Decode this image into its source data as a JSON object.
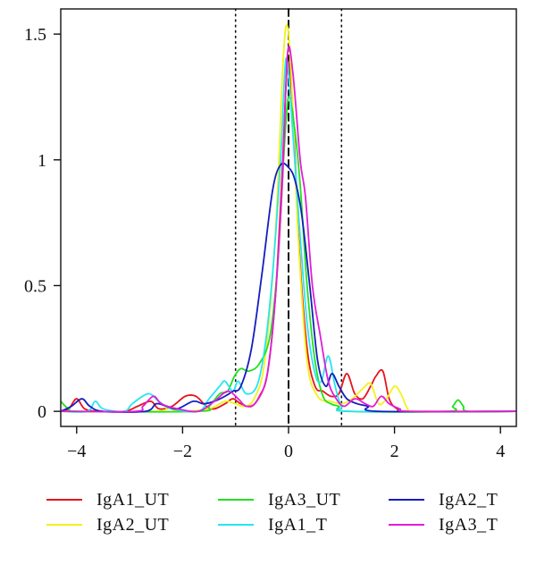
{
  "chart_data": {
    "type": "line",
    "xlim": [
      -4.3,
      4.3
    ],
    "ylim": [
      -0.06,
      1.6
    ],
    "x_ticks": [
      -4,
      -2,
      0,
      2,
      4
    ],
    "x_tick_labels": [
      "−4",
      "−2",
      "0",
      "2",
      "4"
    ],
    "y_ticks": [
      0,
      0.5,
      1,
      1.5
    ],
    "y_tick_labels": [
      "0",
      "0.5",
      "1",
      "1.5"
    ],
    "reference_lines": [
      {
        "x": -1,
        "style": "dotted"
      },
      {
        "x": 0,
        "style": "dashed"
      },
      {
        "x": 1,
        "style": "dotted"
      }
    ],
    "grid": false,
    "legend_placement": "bottom",
    "series": [
      {
        "name": "IgA1_UT",
        "color": "#e8141c",
        "points": [
          [
            -4.3,
            0
          ],
          [
            -4.15,
            0.01
          ],
          [
            -4.0,
            0.05
          ],
          [
            -3.85,
            0.01
          ],
          [
            -3.6,
            0
          ],
          [
            -3.1,
            0
          ],
          [
            -2.85,
            0.02
          ],
          [
            -2.6,
            0.04
          ],
          [
            -2.45,
            0.01
          ],
          [
            -2.2,
            0.02
          ],
          [
            -1.95,
            0.06
          ],
          [
            -1.75,
            0.06
          ],
          [
            -1.55,
            0.02
          ],
          [
            -1.4,
            0.01
          ],
          [
            -1.2,
            0.03
          ],
          [
            -1.05,
            0.05
          ],
          [
            -0.9,
            0.03
          ],
          [
            -0.7,
            0.02
          ],
          [
            -0.55,
            0.06
          ],
          [
            -0.4,
            0.15
          ],
          [
            -0.25,
            0.45
          ],
          [
            -0.12,
            0.95
          ],
          [
            -0.02,
            1.38
          ],
          [
            0.08,
            1.2
          ],
          [
            0.2,
            0.65
          ],
          [
            0.35,
            0.25
          ],
          [
            0.5,
            0.1
          ],
          [
            0.65,
            0.08
          ],
          [
            0.8,
            0.06
          ],
          [
            0.95,
            0.07
          ],
          [
            1.1,
            0.15
          ],
          [
            1.25,
            0.07
          ],
          [
            1.4,
            0.05
          ],
          [
            1.55,
            0.1
          ],
          [
            1.65,
            0.14
          ],
          [
            1.78,
            0.16
          ],
          [
            1.9,
            0.05
          ],
          [
            2.05,
            0.01
          ],
          [
            2.3,
            0
          ],
          [
            4.3,
            0
          ]
        ]
      },
      {
        "name": "IgA2_UT",
        "color": "#f2f21c",
        "points": [
          [
            -4.3,
            0
          ],
          [
            -2.5,
            0
          ],
          [
            -2.3,
            0.02
          ],
          [
            -2.1,
            0
          ],
          [
            -1.5,
            0.01
          ],
          [
            -1.2,
            0.04
          ],
          [
            -1.0,
            0.03
          ],
          [
            -0.85,
            0.02
          ],
          [
            -0.65,
            0.05
          ],
          [
            -0.45,
            0.2
          ],
          [
            -0.25,
            0.7
          ],
          [
            -0.1,
            1.4
          ],
          [
            -0.02,
            1.53
          ],
          [
            0.06,
            1.3
          ],
          [
            0.18,
            0.7
          ],
          [
            0.35,
            0.2
          ],
          [
            0.55,
            0.06
          ],
          [
            0.8,
            0.04
          ],
          [
            1.0,
            0.03
          ],
          [
            1.2,
            0.05
          ],
          [
            1.4,
            0.09
          ],
          [
            1.55,
            0.11
          ],
          [
            1.7,
            0.03
          ],
          [
            1.85,
            0.05
          ],
          [
            2.0,
            0.1
          ],
          [
            2.12,
            0.07
          ],
          [
            2.25,
            0.01
          ],
          [
            2.4,
            0
          ],
          [
            4.3,
            0
          ]
        ]
      },
      {
        "name": "IgA3_UT",
        "color": "#22e01e",
        "points": [
          [
            -4.3,
            0.04
          ],
          [
            -4.15,
            0.01
          ],
          [
            -3.9,
            0
          ],
          [
            -1.7,
            0
          ],
          [
            -1.5,
            0.02
          ],
          [
            -1.3,
            0.07
          ],
          [
            -1.15,
            0.08
          ],
          [
            -1.02,
            0.14
          ],
          [
            -0.9,
            0.17
          ],
          [
            -0.75,
            0.16
          ],
          [
            -0.55,
            0.19
          ],
          [
            -0.35,
            0.3
          ],
          [
            -0.2,
            0.6
          ],
          [
            -0.08,
            1.05
          ],
          [
            0.0,
            1.25
          ],
          [
            0.1,
            1.15
          ],
          [
            0.22,
            0.9
          ],
          [
            0.35,
            0.5
          ],
          [
            0.5,
            0.2
          ],
          [
            0.65,
            0.06
          ],
          [
            0.8,
            0.03
          ],
          [
            0.95,
            0.02
          ],
          [
            1.1,
            0
          ],
          [
            3.0,
            0
          ],
          [
            3.1,
            0.02
          ],
          [
            3.2,
            0.045
          ],
          [
            3.3,
            0.02
          ],
          [
            3.4,
            0
          ],
          [
            4.3,
            0
          ]
        ]
      },
      {
        "name": "IgA1_T",
        "color": "#27e5f2",
        "points": [
          [
            -4.3,
            0
          ],
          [
            -3.8,
            0
          ],
          [
            -3.65,
            0.04
          ],
          [
            -3.5,
            0.01
          ],
          [
            -3.1,
            0
          ],
          [
            -2.95,
            0.03
          ],
          [
            -2.65,
            0.07
          ],
          [
            -2.45,
            0.04
          ],
          [
            -2.2,
            0.01
          ],
          [
            -1.7,
            0.0
          ],
          [
            -1.5,
            0.05
          ],
          [
            -1.3,
            0.1
          ],
          [
            -1.2,
            0.12
          ],
          [
            -1.05,
            0.08
          ],
          [
            -0.95,
            0.12
          ],
          [
            -0.8,
            0.07
          ],
          [
            -0.6,
            0.1
          ],
          [
            -0.45,
            0.25
          ],
          [
            -0.3,
            0.55
          ],
          [
            -0.15,
            1.0
          ],
          [
            -0.05,
            1.4
          ],
          [
            0.05,
            1.2
          ],
          [
            0.2,
            0.75
          ],
          [
            0.35,
            0.35
          ],
          [
            0.5,
            0.15
          ],
          [
            0.62,
            0.12
          ],
          [
            0.75,
            0.22
          ],
          [
            0.88,
            0.1
          ],
          [
            1.0,
            0.02
          ],
          [
            1.2,
            0
          ],
          [
            4.3,
            0
          ]
        ]
      },
      {
        "name": "IgA2_T",
        "color": "#141ebe",
        "points": [
          [
            -4.3,
            0
          ],
          [
            -4.1,
            0.02
          ],
          [
            -3.9,
            0.05
          ],
          [
            -3.75,
            0.02
          ],
          [
            -3.5,
            0
          ],
          [
            -2.7,
            0
          ],
          [
            -2.5,
            0.03
          ],
          [
            -2.3,
            0.02
          ],
          [
            -2.1,
            0.01
          ],
          [
            -1.8,
            0.04
          ],
          [
            -1.6,
            0.03
          ],
          [
            -1.4,
            0.04
          ],
          [
            -1.2,
            0.06
          ],
          [
            -1.05,
            0.08
          ],
          [
            -0.9,
            0.1
          ],
          [
            -0.7,
            0.25
          ],
          [
            -0.5,
            0.55
          ],
          [
            -0.3,
            0.88
          ],
          [
            -0.15,
            0.98
          ],
          [
            0.0,
            0.97
          ],
          [
            0.12,
            0.92
          ],
          [
            0.25,
            0.78
          ],
          [
            0.4,
            0.5
          ],
          [
            0.55,
            0.2
          ],
          [
            0.7,
            0.1
          ],
          [
            0.82,
            0.15
          ],
          [
            0.95,
            0.1
          ],
          [
            1.1,
            0.05
          ],
          [
            1.3,
            0.03
          ],
          [
            1.5,
            0.02
          ],
          [
            1.7,
            0
          ],
          [
            4.3,
            0
          ]
        ]
      },
      {
        "name": "IgA3_T",
        "color": "#e01ed8",
        "points": [
          [
            -4.3,
            0
          ],
          [
            -2.9,
            0
          ],
          [
            -2.75,
            0.02
          ],
          [
            -2.55,
            0.06
          ],
          [
            -2.4,
            0.03
          ],
          [
            -2.1,
            0.01
          ],
          [
            -1.7,
            0.0
          ],
          [
            -1.4,
            0.04
          ],
          [
            -1.15,
            0.08
          ],
          [
            -0.95,
            0.05
          ],
          [
            -0.8,
            0.02
          ],
          [
            -0.6,
            0.04
          ],
          [
            -0.4,
            0.15
          ],
          [
            -0.25,
            0.45
          ],
          [
            -0.12,
            0.9
          ],
          [
            -0.02,
            1.42
          ],
          [
            0.08,
            1.35
          ],
          [
            0.22,
            1.0
          ],
          [
            0.32,
            0.85
          ],
          [
            0.45,
            0.5
          ],
          [
            0.6,
            0.3
          ],
          [
            0.75,
            0.12
          ],
          [
            0.9,
            0.05
          ],
          [
            1.05,
            0.02
          ],
          [
            1.25,
            0.05
          ],
          [
            1.45,
            0.03
          ],
          [
            1.6,
            0.02
          ],
          [
            1.75,
            0.06
          ],
          [
            1.9,
            0.03
          ],
          [
            2.1,
            0.01
          ],
          [
            2.3,
            0
          ],
          [
            4.3,
            0
          ]
        ]
      }
    ]
  }
}
